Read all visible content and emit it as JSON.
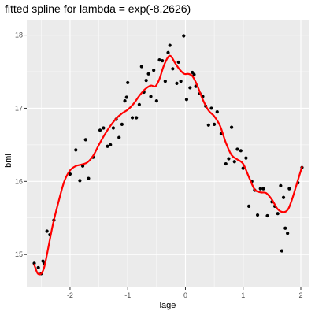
{
  "chart_data": {
    "type": "scatter",
    "title": "fitted spline for lambda = exp(-8.2626)",
    "xlabel": "lage",
    "ylabel": "bmi",
    "xlim": [
      -2.75,
      2.15
    ],
    "ylim": [
      14.55,
      18.2
    ],
    "x_ticks": [
      -2,
      -1,
      0,
      1,
      2
    ],
    "x_tick_labels": [
      "-2",
      "-1",
      "0",
      "1",
      "2"
    ],
    "y_ticks": [
      15,
      16,
      17,
      18
    ],
    "y_tick_labels": [
      "15",
      "16",
      "17",
      "18"
    ],
    "grid": true,
    "legend": "none",
    "colors": {
      "panel": "#ebebeb",
      "grid": "#ffffff",
      "points": "#000000",
      "fit_line": "#ff0000"
    },
    "points": [
      {
        "x": -2.62,
        "y": 14.88
      },
      {
        "x": -2.55,
        "y": 14.82
      },
      {
        "x": -2.5,
        "y": 14.74
      },
      {
        "x": -2.47,
        "y": 14.91
      },
      {
        "x": -2.45,
        "y": 14.88
      },
      {
        "x": -2.4,
        "y": 15.32
      },
      {
        "x": -2.35,
        "y": 15.27
      },
      {
        "x": -2.28,
        "y": 15.47
      },
      {
        "x": -2.0,
        "y": 16.1
      },
      {
        "x": -1.9,
        "y": 16.43
      },
      {
        "x": -1.83,
        "y": 16.01
      },
      {
        "x": -1.78,
        "y": 16.21
      },
      {
        "x": -1.73,
        "y": 16.57
      },
      {
        "x": -1.68,
        "y": 16.04
      },
      {
        "x": -1.6,
        "y": 16.33
      },
      {
        "x": -1.48,
        "y": 16.7
      },
      {
        "x": -1.42,
        "y": 16.73
      },
      {
        "x": -1.35,
        "y": 16.48
      },
      {
        "x": -1.3,
        "y": 16.5
      },
      {
        "x": -1.25,
        "y": 16.73
      },
      {
        "x": -1.2,
        "y": 16.85
      },
      {
        "x": -1.15,
        "y": 16.6
      },
      {
        "x": -1.1,
        "y": 16.78
      },
      {
        "x": -1.05,
        "y": 17.1
      },
      {
        "x": -1.02,
        "y": 17.15
      },
      {
        "x": -1.0,
        "y": 17.35
      },
      {
        "x": -0.92,
        "y": 16.87
      },
      {
        "x": -0.85,
        "y": 16.87
      },
      {
        "x": -0.8,
        "y": 17.05
      },
      {
        "x": -0.76,
        "y": 17.57
      },
      {
        "x": -0.72,
        "y": 17.22
      },
      {
        "x": -0.68,
        "y": 17.38
      },
      {
        "x": -0.64,
        "y": 17.47
      },
      {
        "x": -0.6,
        "y": 17.16
      },
      {
        "x": -0.55,
        "y": 17.52
      },
      {
        "x": -0.5,
        "y": 17.1
      },
      {
        "x": -0.45,
        "y": 17.66
      },
      {
        "x": -0.4,
        "y": 17.65
      },
      {
        "x": -0.35,
        "y": 17.37
      },
      {
        "x": -0.3,
        "y": 17.76
      },
      {
        "x": -0.27,
        "y": 17.86
      },
      {
        "x": -0.22,
        "y": 17.54
      },
      {
        "x": -0.15,
        "y": 17.34
      },
      {
        "x": -0.12,
        "y": 17.63
      },
      {
        "x": -0.08,
        "y": 17.37
      },
      {
        "x": -0.03,
        "y": 17.99
      },
      {
        "x": 0.02,
        "y": 17.12
      },
      {
        "x": 0.08,
        "y": 17.28
      },
      {
        "x": 0.12,
        "y": 17.49
      },
      {
        "x": 0.15,
        "y": 17.46
      },
      {
        "x": 0.18,
        "y": 17.3
      },
      {
        "x": 0.25,
        "y": 17.2
      },
      {
        "x": 0.3,
        "y": 17.16
      },
      {
        "x": 0.35,
        "y": 17.03
      },
      {
        "x": 0.4,
        "y": 16.77
      },
      {
        "x": 0.45,
        "y": 17.0
      },
      {
        "x": 0.5,
        "y": 16.78
      },
      {
        "x": 0.55,
        "y": 16.95
      },
      {
        "x": 0.62,
        "y": 16.65
      },
      {
        "x": 0.7,
        "y": 16.24
      },
      {
        "x": 0.75,
        "y": 16.31
      },
      {
        "x": 0.8,
        "y": 16.74
      },
      {
        "x": 0.85,
        "y": 16.27
      },
      {
        "x": 0.9,
        "y": 16.44
      },
      {
        "x": 0.96,
        "y": 16.42
      },
      {
        "x": 1.0,
        "y": 16.18
      },
      {
        "x": 1.05,
        "y": 16.32
      },
      {
        "x": 1.1,
        "y": 15.66
      },
      {
        "x": 1.15,
        "y": 16.0
      },
      {
        "x": 1.2,
        "y": 15.88
      },
      {
        "x": 1.25,
        "y": 15.54
      },
      {
        "x": 1.3,
        "y": 15.9
      },
      {
        "x": 1.35,
        "y": 15.9
      },
      {
        "x": 1.42,
        "y": 15.53
      },
      {
        "x": 1.5,
        "y": 15.72
      },
      {
        "x": 1.55,
        "y": 15.66
      },
      {
        "x": 1.6,
        "y": 15.56
      },
      {
        "x": 1.65,
        "y": 15.94
      },
      {
        "x": 1.67,
        "y": 15.05
      },
      {
        "x": 1.7,
        "y": 15.78
      },
      {
        "x": 1.73,
        "y": 15.36
      },
      {
        "x": 1.77,
        "y": 15.29
      },
      {
        "x": 1.8,
        "y": 15.9
      },
      {
        "x": 1.95,
        "y": 15.98
      },
      {
        "x": 2.02,
        "y": 16.19
      }
    ],
    "fit_curve": [
      {
        "x": -2.62,
        "y": 14.86
      },
      {
        "x": -2.56,
        "y": 14.74
      },
      {
        "x": -2.5,
        "y": 14.74
      },
      {
        "x": -2.45,
        "y": 14.82
      },
      {
        "x": -2.4,
        "y": 15.0
      },
      {
        "x": -2.3,
        "y": 15.4
      },
      {
        "x": -2.2,
        "y": 15.72
      },
      {
        "x": -2.1,
        "y": 16.0
      },
      {
        "x": -2.0,
        "y": 16.15
      },
      {
        "x": -1.9,
        "y": 16.21
      },
      {
        "x": -1.8,
        "y": 16.23
      },
      {
        "x": -1.7,
        "y": 16.26
      },
      {
        "x": -1.6,
        "y": 16.35
      },
      {
        "x": -1.5,
        "y": 16.5
      },
      {
        "x": -1.4,
        "y": 16.64
      },
      {
        "x": -1.3,
        "y": 16.76
      },
      {
        "x": -1.2,
        "y": 16.86
      },
      {
        "x": -1.1,
        "y": 16.93
      },
      {
        "x": -1.0,
        "y": 16.98
      },
      {
        "x": -0.9,
        "y": 17.06
      },
      {
        "x": -0.8,
        "y": 17.17
      },
      {
        "x": -0.7,
        "y": 17.26
      },
      {
        "x": -0.6,
        "y": 17.31
      },
      {
        "x": -0.52,
        "y": 17.3
      },
      {
        "x": -0.45,
        "y": 17.4
      },
      {
        "x": -0.38,
        "y": 17.57
      },
      {
        "x": -0.3,
        "y": 17.7
      },
      {
        "x": -0.25,
        "y": 17.71
      },
      {
        "x": -0.18,
        "y": 17.62
      },
      {
        "x": -0.1,
        "y": 17.53
      },
      {
        "x": -0.02,
        "y": 17.47
      },
      {
        "x": 0.05,
        "y": 17.47
      },
      {
        "x": 0.12,
        "y": 17.44
      },
      {
        "x": 0.2,
        "y": 17.32
      },
      {
        "x": 0.3,
        "y": 17.12
      },
      {
        "x": 0.4,
        "y": 16.97
      },
      {
        "x": 0.5,
        "y": 16.89
      },
      {
        "x": 0.6,
        "y": 16.76
      },
      {
        "x": 0.7,
        "y": 16.53
      },
      {
        "x": 0.8,
        "y": 16.36
      },
      {
        "x": 0.9,
        "y": 16.3
      },
      {
        "x": 1.0,
        "y": 16.24
      },
      {
        "x": 1.1,
        "y": 16.06
      },
      {
        "x": 1.2,
        "y": 15.89
      },
      {
        "x": 1.3,
        "y": 15.85
      },
      {
        "x": 1.4,
        "y": 15.84
      },
      {
        "x": 1.5,
        "y": 15.75
      },
      {
        "x": 1.6,
        "y": 15.62
      },
      {
        "x": 1.7,
        "y": 15.58
      },
      {
        "x": 1.78,
        "y": 15.62
      },
      {
        "x": 1.85,
        "y": 15.76
      },
      {
        "x": 1.92,
        "y": 15.94
      },
      {
        "x": 2.02,
        "y": 16.2
      }
    ]
  }
}
